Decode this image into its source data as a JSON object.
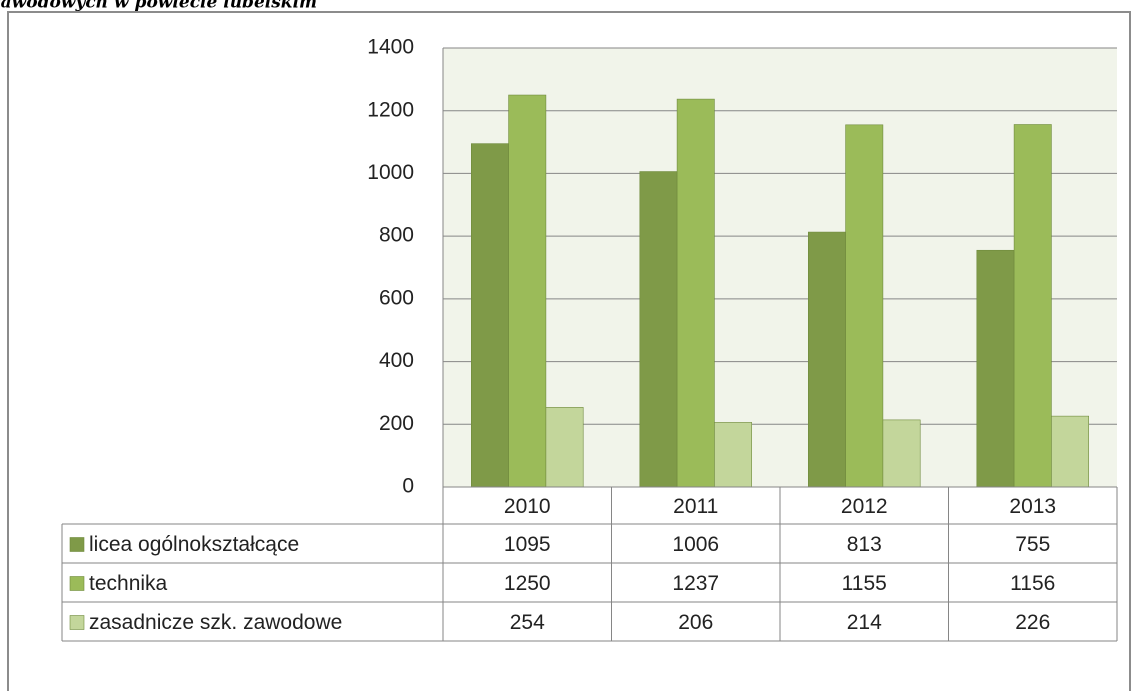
{
  "chart_data": {
    "type": "bar",
    "title": "zawodowych w powiecie lubelskim",
    "categories": [
      "2010",
      "2011",
      "2012",
      "2013"
    ],
    "series": [
      {
        "name": "licea ogólnokształcące",
        "color": "#7f9a48",
        "values": [
          1095,
          1006,
          813,
          755
        ]
      },
      {
        "name": "technika",
        "color": "#9bbb59",
        "values": [
          1250,
          1237,
          1155,
          1156
        ]
      },
      {
        "name": "zasadnicze szk. zawodowe",
        "color": "#c3d69b",
        "values": [
          254,
          206,
          214,
          226
        ]
      }
    ],
    "ylim": [
      0,
      1400
    ],
    "yticks": [
      0,
      200,
      400,
      600,
      800,
      1000,
      1200,
      1400
    ],
    "grid": true
  }
}
